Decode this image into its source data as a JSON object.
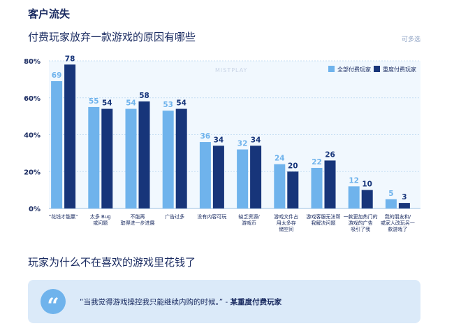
{
  "header": {
    "section_title": "客户流失"
  },
  "chart_section": {
    "multi_select_note": "可多选"
  },
  "chart_data": {
    "type": "bar",
    "title": "付费玩家放弃一款游戏的原因有哪些",
    "watermark": "MISTPLAY",
    "categories": [
      [
        "\"花钱才能赢\""
      ],
      [
        "太多 Bug",
        "或问题"
      ],
      [
        "不能再",
        "取得进一步进展"
      ],
      [
        "广告过多"
      ],
      [
        "没有内容可玩"
      ],
      [
        "缺乏资源/",
        "游戏币"
      ],
      [
        "游戏文件占",
        "用太多存",
        "储空间"
      ],
      [
        "游戏客服无法帮",
        "我解决问题"
      ],
      [
        "一款更加热门的",
        "游戏的广告",
        "吸引了我"
      ],
      [
        "我的朋友和/",
        "或家人改玩另一",
        "款游戏了"
      ]
    ],
    "series": [
      {
        "name": "全部付费玩家",
        "color": "#6fb3ec",
        "values": [
          69,
          55,
          54,
          53,
          36,
          32,
          24,
          22,
          12,
          5
        ]
      },
      {
        "name": "重度付费玩家",
        "color": "#17357a",
        "values": [
          78,
          54,
          58,
          54,
          34,
          34,
          20,
          26,
          10,
          3
        ]
      }
    ],
    "ylim": [
      0,
      80
    ],
    "yticks": [
      "0%",
      "20%",
      "40%",
      "60%",
      "80%"
    ],
    "grid": true,
    "legend": "top-right"
  },
  "section2": {
    "title": "玩家为什么不在喜欢的游戏里花钱了"
  },
  "quote": {
    "icon": "“",
    "text": "“当我觉得游戏操控我只能继续内购的时候。” - ",
    "author": "某重度付费玩家"
  }
}
